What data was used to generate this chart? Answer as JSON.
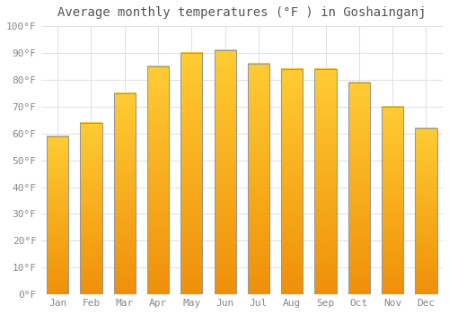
{
  "title": "Average monthly temperatures (°F ) in Goshainganj",
  "months": [
    "Jan",
    "Feb",
    "Mar",
    "Apr",
    "May",
    "Jun",
    "Jul",
    "Aug",
    "Sep",
    "Oct",
    "Nov",
    "Dec"
  ],
  "values": [
    59,
    64,
    75,
    85,
    90,
    91,
    86,
    84,
    84,
    79,
    70,
    62
  ],
  "bar_color_top": "#FFCC33",
  "bar_color_bottom": "#F0900A",
  "bar_edge_color": "#999999",
  "ylim": [
    0,
    100
  ],
  "yticks": [
    0,
    10,
    20,
    30,
    40,
    50,
    60,
    70,
    80,
    90,
    100
  ],
  "ytick_labels": [
    "0°F",
    "10°F",
    "20°F",
    "30°F",
    "40°F",
    "50°F",
    "60°F",
    "70°F",
    "80°F",
    "90°F",
    "100°F"
  ],
  "background_color": "#FFFFFF",
  "grid_color": "#E0E0E0",
  "title_fontsize": 10,
  "tick_fontsize": 8,
  "bar_width": 0.65
}
